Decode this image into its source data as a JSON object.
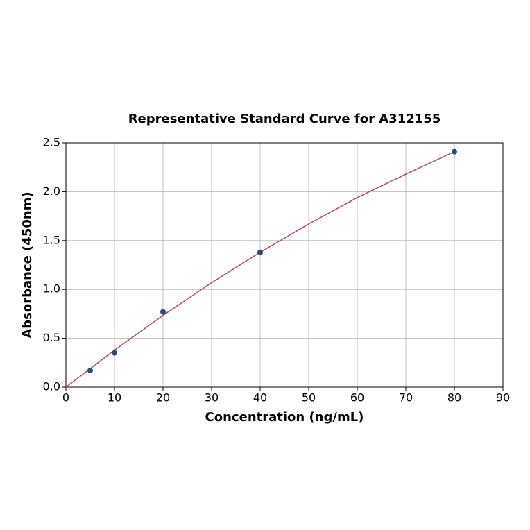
{
  "chart_data": {
    "type": "scatter",
    "title": "Representative Standard Curve for A312155",
    "x_label": "Concentration (ng/mL)",
    "y_label": "Absorbance (450nm)",
    "x": [
      5,
      10,
      20,
      40,
      80
    ],
    "values": [
      0.17,
      0.35,
      0.77,
      1.38,
      2.41
    ],
    "color": "#2e4a7d",
    "curve": {
      "color": "#b5476a",
      "x": [
        0,
        10,
        20,
        30,
        40,
        50,
        60,
        70,
        80
      ],
      "values": [
        0,
        0.378,
        0.734,
        1.069,
        1.38,
        1.67,
        1.94,
        2.18,
        2.41
      ]
    },
    "xlim": [
      0,
      90
    ],
    "xticks": [
      0,
      10,
      20,
      30,
      40,
      50,
      60,
      70,
      80,
      90
    ],
    "ylim": [
      0,
      2.5
    ],
    "yticks": [
      {
        "value": 0,
        "label": "0.0"
      },
      0.5,
      {
        "value": 1,
        "label": "1.0"
      },
      1.5,
      {
        "value": 2,
        "label": "2.0"
      },
      2.5
    ],
    "grid": true
  }
}
